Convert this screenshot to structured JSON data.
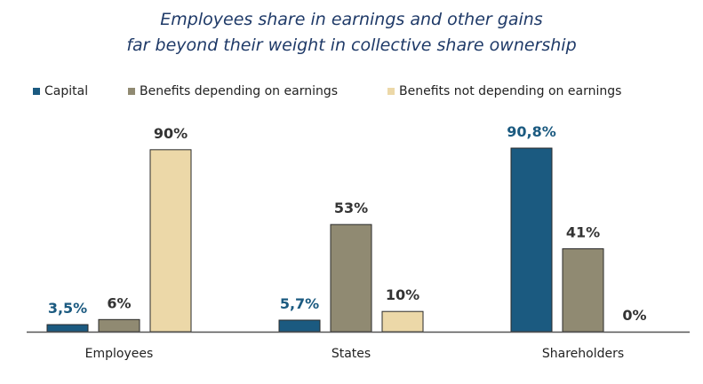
{
  "chart_data": {
    "type": "bar",
    "title": "Employees share in earnings and other gains",
    "subtitle": "far beyond their weight in collective share ownership",
    "categories": [
      "Employees",
      "States",
      "Shareholders"
    ],
    "series": [
      {
        "name": "Capital",
        "values": [
          3.5,
          5.7,
          90.8
        ],
        "labels": [
          "3,5%",
          "5,7%",
          "90,8%"
        ],
        "color": "#1b5a80",
        "label_color": "#1b5a80"
      },
      {
        "name": "Benefits depending on earnings",
        "values": [
          6,
          53,
          41
        ],
        "labels": [
          "6%",
          "53%",
          "41%"
        ],
        "color": "#908a72",
        "label_color": "#333333"
      },
      {
        "name": "Benefits not depending on earnings",
        "values": [
          90,
          10,
          0
        ],
        "labels": [
          "90%",
          "10%",
          "0%"
        ],
        "color": "#ecd8a8",
        "label_color": "#333333"
      }
    ],
    "ylim": [
      0,
      90.8
    ],
    "legend_position": "top-left",
    "grid": false
  }
}
